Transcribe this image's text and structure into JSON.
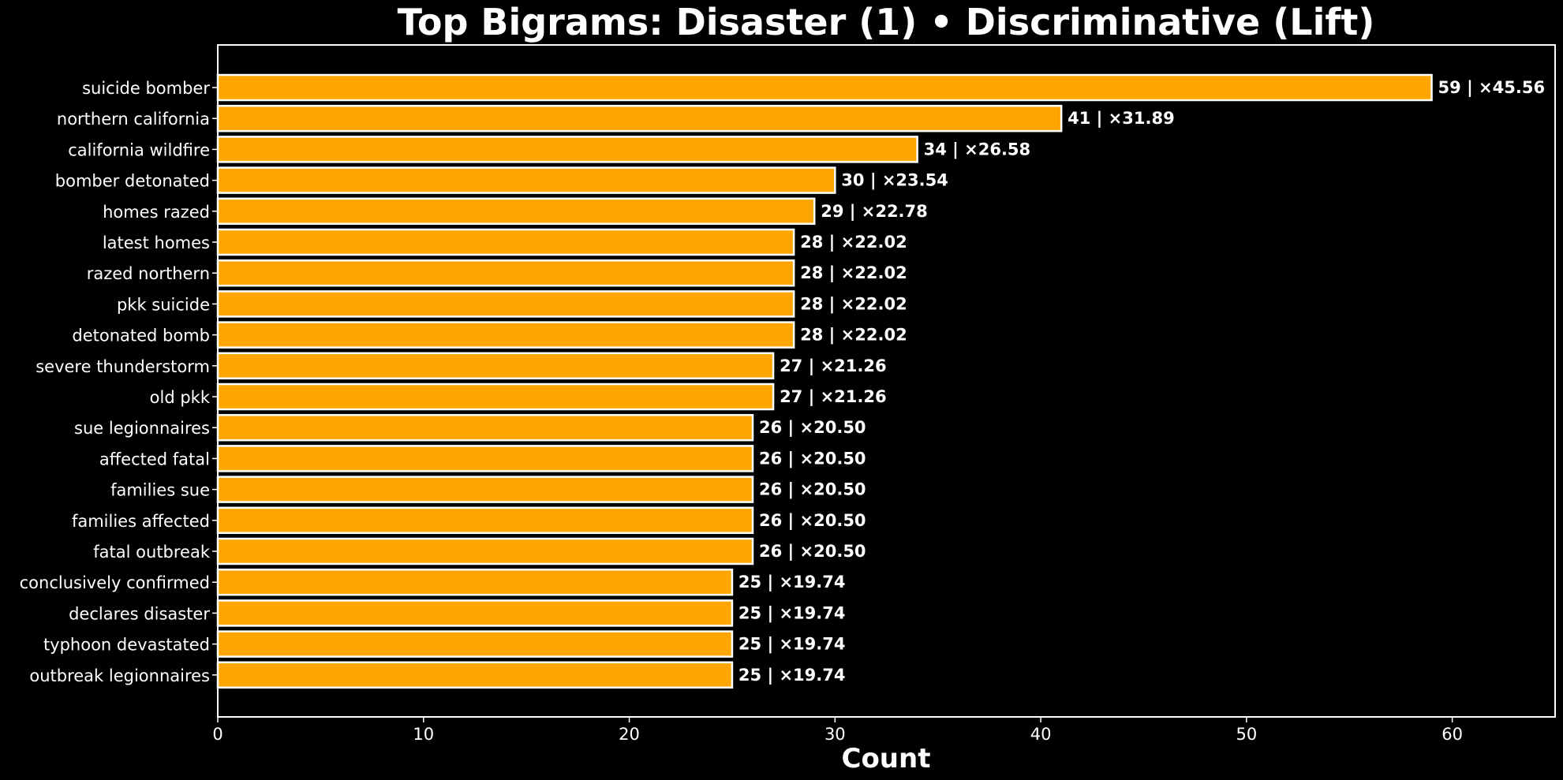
{
  "chart_data": {
    "type": "bar",
    "orientation": "horizontal",
    "title": "Top Bigrams: Disaster (1) • Discriminative (Lift)",
    "xlabel": "Count",
    "ylabel": "",
    "xlim": [
      0,
      65
    ],
    "xticks": [
      0,
      10,
      20,
      30,
      40,
      50,
      60
    ],
    "grid": false,
    "legend": "none",
    "colors": {
      "background": "#000000",
      "bar_fill": "#FFA500",
      "bar_edge": "#FFFFFF",
      "text": "#FFFFFF",
      "axes": "#FFFFFF"
    },
    "categories": [
      "suicide bomber",
      "northern california",
      "california wildfire",
      "bomber detonated",
      "homes razed",
      "latest homes",
      "razed northern",
      "pkk suicide",
      "detonated bomb",
      "severe thunderstorm",
      "old pkk",
      "sue legionnaires",
      "affected fatal",
      "families sue",
      "families affected",
      "fatal outbreak",
      "conclusively confirmed",
      "declares disaster",
      "typhoon devastated",
      "outbreak legionnaires"
    ],
    "values": [
      59,
      41,
      34,
      30,
      29,
      28,
      28,
      28,
      28,
      27,
      27,
      26,
      26,
      26,
      26,
      26,
      25,
      25,
      25,
      25
    ],
    "lift": [
      45.56,
      31.89,
      26.58,
      23.54,
      22.78,
      22.02,
      22.02,
      22.02,
      22.02,
      21.26,
      21.26,
      20.5,
      20.5,
      20.5,
      20.5,
      20.5,
      19.74,
      19.74,
      19.74,
      19.74
    ],
    "data_labels": [
      "59 | ×45.56",
      "41 | ×31.89",
      "34 | ×26.58",
      "30 | ×23.54",
      "29 | ×22.78",
      "28 | ×22.02",
      "28 | ×22.02",
      "28 | ×22.02",
      "28 | ×22.02",
      "27 | ×21.26",
      "27 | ×21.26",
      "26 | ×20.50",
      "26 | ×20.50",
      "26 | ×20.50",
      "26 | ×20.50",
      "26 | ×20.50",
      "25 | ×19.74",
      "25 | ×19.74",
      "25 | ×19.74",
      "25 | ×19.74"
    ]
  }
}
